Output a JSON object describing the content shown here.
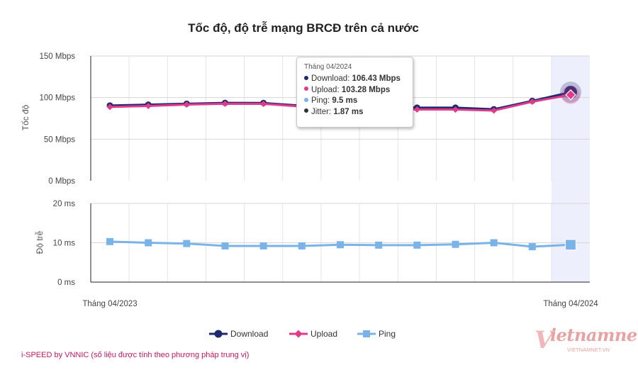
{
  "chart_data": {
    "type": "line",
    "title": "Tốc độ, độ trễ mạng BRCĐ trên cả nước",
    "x_start_label": "Tháng 04/2023",
    "x_end_label": "Tháng 04/2024",
    "x_points": 13,
    "speed_panel": {
      "ylabel": "Tốc độ",
      "ylim": [
        0,
        150
      ],
      "ticks": [
        {
          "value": 0,
          "label": "0 Mbps"
        },
        {
          "value": 50,
          "label": "50 Mbps"
        },
        {
          "value": 100,
          "label": "100 Mbps"
        },
        {
          "value": 150,
          "label": "150 Mbps"
        }
      ],
      "series": [
        {
          "name": "Download",
          "color": "#1f2a6e",
          "marker": "circle",
          "values": [
            90.5,
            91.5,
            92.6,
            93.6,
            93.5,
            90.2,
            89.0,
            89.1,
            87.9,
            87.9,
            86.0,
            96.0,
            106.43
          ]
        },
        {
          "name": "Upload",
          "color": "#e03a8a",
          "marker": "diamond",
          "values": [
            88.7,
            89.9,
            91.6,
            92.6,
            92.5,
            89.2,
            87.0,
            86.9,
            85.7,
            85.6,
            84.4,
            95.0,
            103.28
          ]
        }
      ]
    },
    "latency_panel": {
      "ylabel": "Độ trễ",
      "ylim": [
        0,
        20
      ],
      "ticks": [
        {
          "value": 0,
          "label": "0 ms"
        },
        {
          "value": 10,
          "label": "10 ms"
        },
        {
          "value": 20,
          "label": "20 ms"
        }
      ],
      "series": [
        {
          "name": "Ping",
          "color": "#7ab3e8",
          "marker": "square",
          "values": [
            10.3,
            10.0,
            9.8,
            9.2,
            9.2,
            9.2,
            9.5,
            9.4,
            9.4,
            9.6,
            10.0,
            9.0,
            9.5
          ]
        }
      ]
    },
    "highlight_index": 12,
    "grid": true,
    "legend_position": "bottom-center",
    "legend": [
      {
        "name": "Download",
        "color": "#1f2a6e",
        "marker": "circle"
      },
      {
        "name": "Upload",
        "color": "#e03a8a",
        "marker": "diamond"
      },
      {
        "name": "Ping",
        "color": "#7ab3e8",
        "marker": "square"
      }
    ]
  },
  "tooltip": {
    "title": "Tháng 04/2024",
    "rows": [
      {
        "label": "Download",
        "value": "106.43 Mbps",
        "color": "#1f2a6e"
      },
      {
        "label": "Upload",
        "value": "103.28 Mbps",
        "color": "#e03a8a"
      },
      {
        "label": "Ping",
        "value": "9.5 ms",
        "color": "#7ab3e8"
      },
      {
        "label": "Jitter",
        "value": "1.87 ms",
        "color": "#333333"
      }
    ]
  },
  "footer_note": "i-SPEED by VNNIC (số liệu được tính theo phương pháp trung vị)",
  "watermark": {
    "text": "ietnamnet",
    "letter": "V",
    "sub": "VIETNAMNET.VN"
  }
}
